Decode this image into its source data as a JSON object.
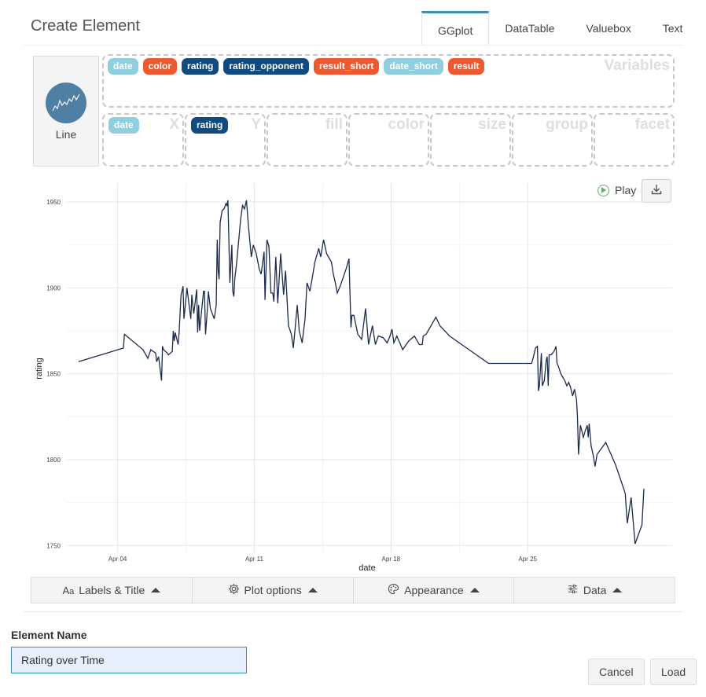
{
  "header": {
    "title": "Create Element",
    "tabs": [
      {
        "label": "GGplot",
        "active": true
      },
      {
        "label": "DataTable",
        "active": false
      },
      {
        "label": "Valuebox",
        "active": false
      },
      {
        "label": "Text",
        "active": false
      }
    ]
  },
  "chart_type": {
    "label": "Line",
    "icon": "line-chart-icon"
  },
  "variables": {
    "zone_label": "Variables",
    "items": [
      {
        "label": "date",
        "color": "#8fcfe0"
      },
      {
        "label": "color",
        "color": "#ee5a2f"
      },
      {
        "label": "rating",
        "color": "#0f4a80"
      },
      {
        "label": "rating_opponent",
        "color": "#0f4a80"
      },
      {
        "label": "result_short",
        "color": "#ee5a2f"
      },
      {
        "label": "date_short",
        "color": "#8fcfe0"
      },
      {
        "label": "result",
        "color": "#ee5a2f"
      }
    ]
  },
  "aesthetics": [
    {
      "label": "X",
      "value": "date",
      "color": "#8fcfe0"
    },
    {
      "label": "Y",
      "value": "rating",
      "color": "#0f4a80"
    },
    {
      "label": "fill",
      "value": ""
    },
    {
      "label": "color",
      "value": ""
    },
    {
      "label": "size",
      "value": ""
    },
    {
      "label": "group",
      "value": ""
    },
    {
      "label": "facet",
      "value": ""
    }
  ],
  "plot_controls": {
    "play_label": "Play",
    "download_icon": "download-icon"
  },
  "chart_data": {
    "type": "line",
    "xlabel": "date",
    "ylabel": "rating",
    "x_ticks": [
      "Apr 04",
      "Apr 11",
      "Apr 18",
      "Apr 25"
    ],
    "y_ticks": [
      1750,
      1800,
      1850,
      1900,
      1950
    ],
    "xlim": [
      0.4,
      31.4
    ],
    "ylim": [
      1746,
      1961
    ],
    "line_color": "#1c2b4b",
    "grid": true,
    "x": [
      1.0,
      3.3,
      3.35,
      4.3,
      4.55,
      4.7,
      4.95,
      5.0,
      5.1,
      5.25,
      5.3,
      5.35,
      5.55,
      5.6,
      5.8,
      5.85,
      5.9,
      5.95,
      6.1,
      6.15,
      6.25,
      6.3,
      6.35,
      6.4,
      6.55,
      6.75,
      6.8,
      6.85,
      6.9,
      7.05,
      7.1,
      7.15,
      7.2,
      7.4,
      7.45,
      7.5,
      7.55,
      7.6,
      7.65,
      7.75,
      7.85,
      7.95,
      8.05,
      8.1,
      8.15,
      8.2,
      8.25,
      8.35,
      8.45,
      8.55,
      8.6,
      8.65,
      8.75,
      8.85,
      8.9,
      8.95,
      9.0,
      9.1,
      9.3,
      9.4,
      9.5,
      9.6,
      9.7,
      9.85,
      9.95,
      10.1,
      10.25,
      10.35,
      10.5,
      10.55,
      10.65,
      10.75,
      10.85,
      10.95,
      11.0,
      11.1,
      11.2,
      11.35,
      11.5,
      11.6,
      11.75,
      11.9,
      12.0,
      12.2,
      12.3,
      12.45,
      12.6,
      12.7,
      12.85,
      13.0,
      13.1,
      13.3,
      13.4,
      13.55,
      13.7,
      13.8,
      13.95,
      14.05,
      14.15,
      14.25,
      14.4,
      14.55,
      14.7,
      14.85,
      14.95,
      15.0,
      15.1,
      15.3,
      15.5,
      15.7,
      15.85,
      16.05,
      16.2,
      16.35,
      16.6,
      16.8,
      16.95,
      17.05,
      17.15,
      17.3,
      17.6,
      17.9,
      18.2,
      18.45,
      18.6,
      18.65,
      18.8,
      19.3,
      19.5,
      20.0,
      22.0,
      24.2,
      24.3,
      24.4,
      24.5,
      24.55,
      24.6,
      24.7,
      24.75,
      24.85,
      24.95,
      25.0,
      25.05,
      25.1,
      25.2,
      25.35,
      25.45,
      25.5,
      25.55,
      25.7,
      25.8,
      25.9,
      26.0,
      26.1,
      26.2,
      26.3,
      26.4,
      26.5,
      26.55,
      26.6,
      26.7,
      26.85,
      26.95,
      27.05,
      27.1,
      27.15,
      27.25,
      27.35,
      27.45,
      27.55,
      28.0,
      28.5,
      28.95,
      29.0,
      29.05,
      29.1,
      29.3,
      29.5,
      29.85,
      29.95
    ],
    "y": [
      1857,
      1865,
      1873,
      1864,
      1859,
      1864,
      1862,
      1857,
      1860,
      1846,
      1866,
      1864,
      1862,
      1861,
      1863,
      1875,
      1869,
      1874,
      1867,
      1874,
      1896,
      1898,
      1901,
      1882,
      1900,
      1882,
      1896,
      1890,
      1885,
      1899,
      1874,
      1890,
      1875,
      1898,
      1898,
      1873,
      1880,
      1888,
      1898,
      1888,
      1885,
      1882,
      1890,
      1928,
      1910,
      1905,
      1938,
      1945,
      1946,
      1949,
      1948,
      1951,
      1903,
      1925,
      1898,
      1895,
      1905,
      1915,
      1940,
      1948,
      1946,
      1951,
      1936,
      1918,
      1925,
      1920,
      1911,
      1908,
      1921,
      1893,
      1928,
      1924,
      1897,
      1897,
      1892,
      1918,
      1891,
      1920,
      1896,
      1910,
      1878,
      1873,
      1865,
      1890,
      1875,
      1868,
      1882,
      1903,
      1898,
      1908,
      1915,
      1923,
      1918,
      1928,
      1920,
      1918,
      1915,
      1908,
      1903,
      1897,
      1901,
      1906,
      1911,
      1917,
      1877,
      1884,
      1884,
      1873,
      1870,
      1888,
      1867,
      1878,
      1867,
      1872,
      1871,
      1868,
      1872,
      1876,
      1868,
      1872,
      1864,
      1869,
      1872,
      1867,
      1867,
      1872,
      1873,
      1883,
      1878,
      1872,
      1856,
      1856,
      1860,
      1865,
      1866,
      1840,
      1843,
      1862,
      1843,
      1846,
      1858,
      1860,
      1843,
      1861,
      1861,
      1863,
      1866,
      1856,
      1855,
      1850,
      1848,
      1846,
      1843,
      1845,
      1842,
      1837,
      1841,
      1835,
      1825,
      1803,
      1820,
      1813,
      1817,
      1820,
      1813,
      1821,
      1808,
      1803,
      1796,
      1803,
      1810,
      1797,
      1782,
      1780,
      1771,
      1763,
      1778,
      1751,
      1762,
      1783
    ]
  },
  "toolbar": [
    {
      "label": "Labels & Title",
      "icon": "text-size-icon"
    },
    {
      "label": "Plot options",
      "icon": "gear-icon"
    },
    {
      "label": "Appearance",
      "icon": "palette-icon"
    },
    {
      "label": "Data",
      "icon": "sliders-icon"
    }
  ],
  "element_name": {
    "label": "Element Name",
    "value": "Rating over Time"
  },
  "buttons": {
    "cancel": "Cancel",
    "load": "Load"
  }
}
